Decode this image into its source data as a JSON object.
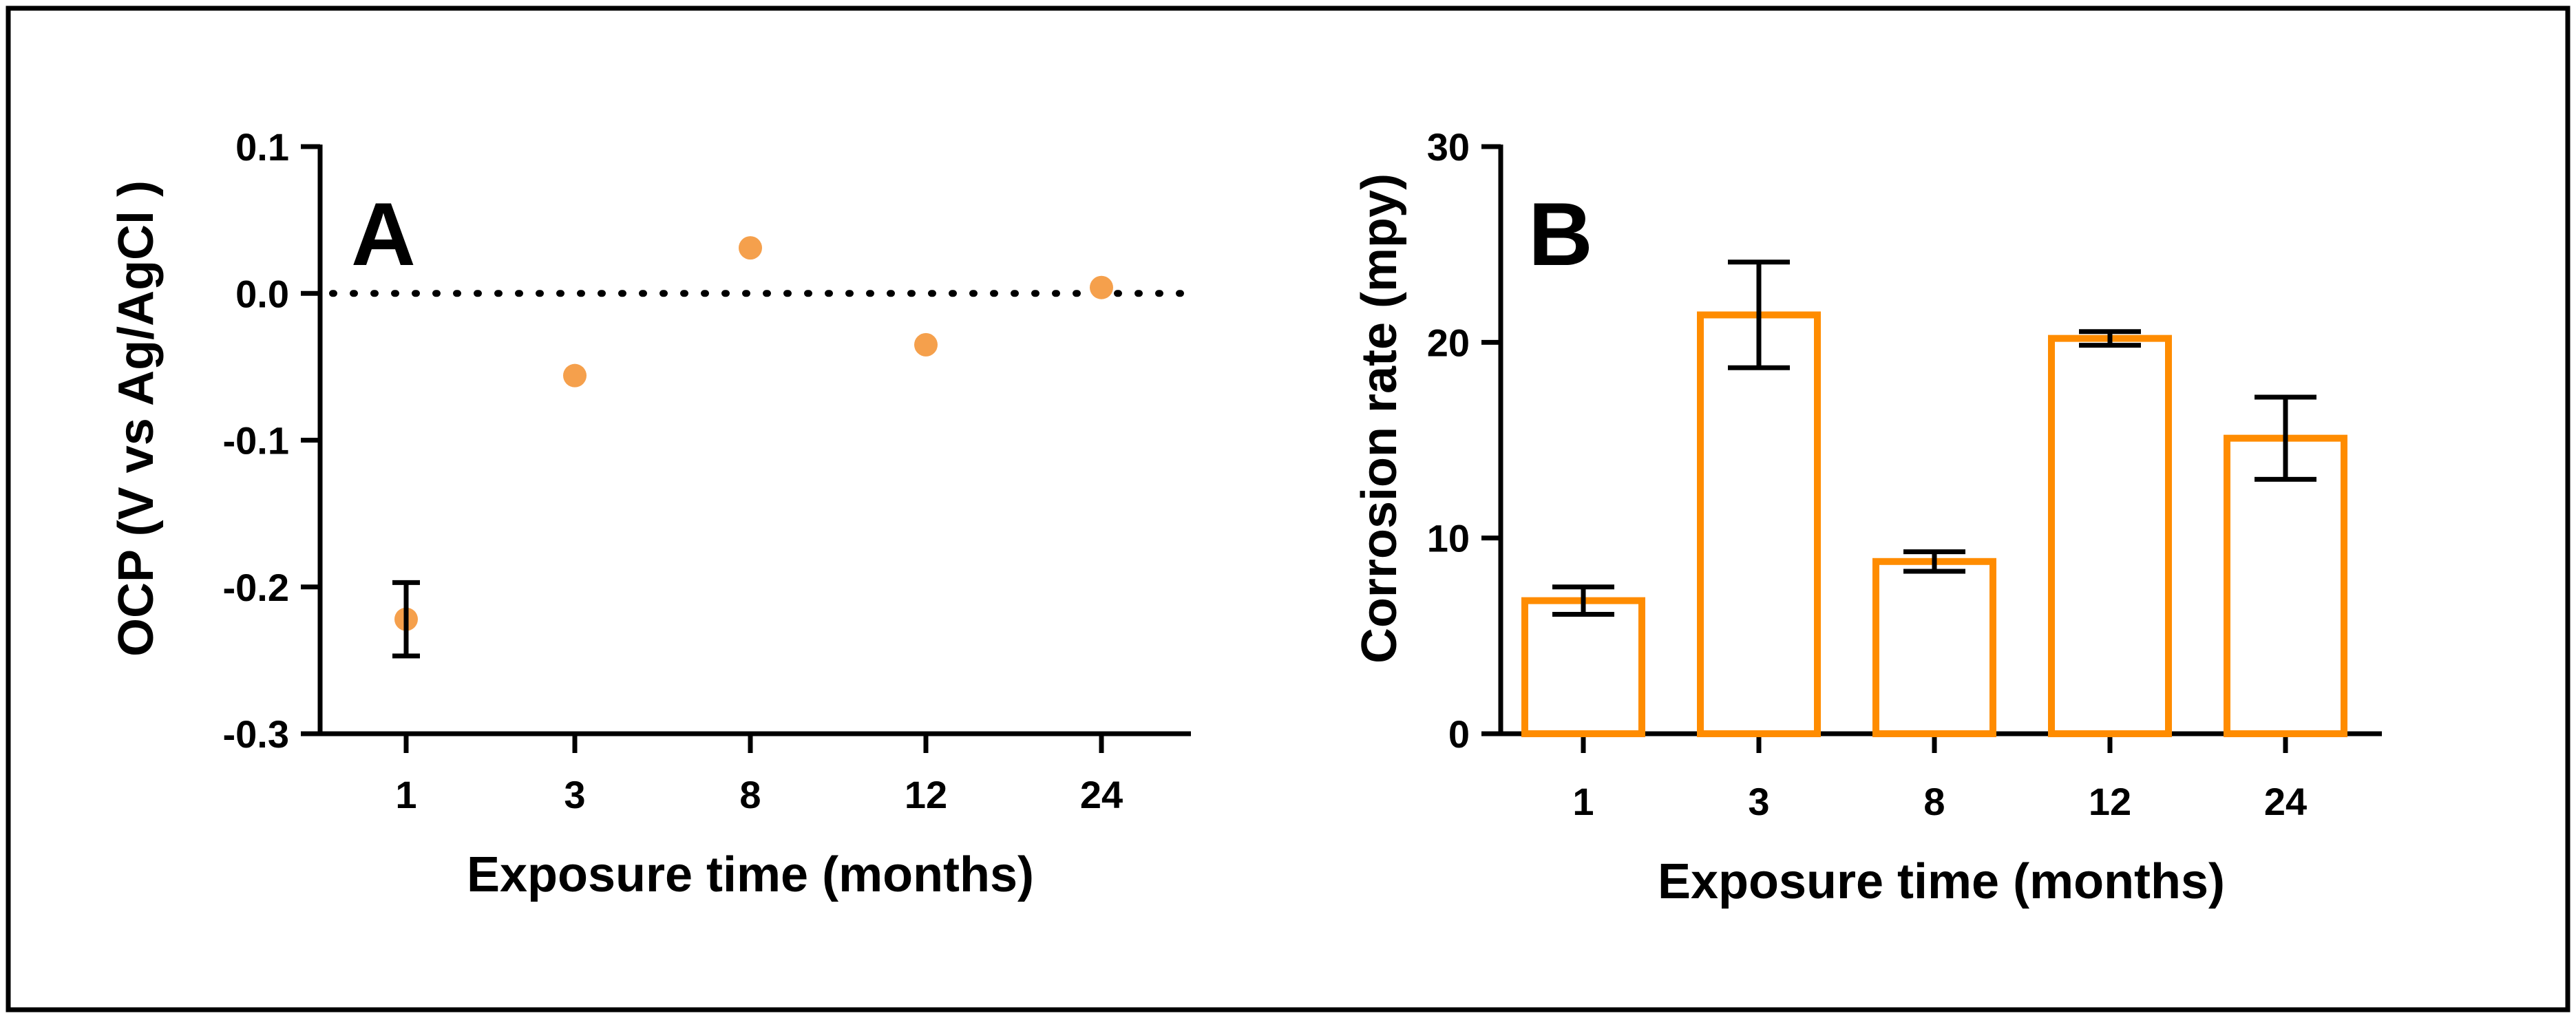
{
  "colors": {
    "marker": "#F5A04C",
    "bar_edge": "#FF8C00",
    "axis": "#000000",
    "frame": "#000000",
    "background": "#FFFFFF"
  },
  "chart_data": [
    {
      "panel": "A",
      "type": "scatter",
      "categories": [
        "1",
        "3",
        "8",
        "12",
        "24"
      ],
      "values": [
        -0.222,
        -0.056,
        0.031,
        -0.035,
        0.004
      ],
      "errors": [
        0.025,
        null,
        null,
        null,
        null
      ],
      "reference_line": {
        "y": 0.0,
        "style": "dotted"
      },
      "xlabel": "Exposure time (months)",
      "ylabel": "OCP (V vs Ag/AgCl )",
      "ylim": [
        -0.3,
        0.1
      ],
      "yticks": [
        0.1,
        0.0,
        -0.1,
        -0.2,
        -0.3
      ],
      "ytick_labels": [
        "0.1",
        "0.0",
        "-0.1",
        "-0.2",
        "-0.3"
      ],
      "grid": false
    },
    {
      "panel": "B",
      "type": "bar",
      "categories": [
        "1",
        "3",
        "8",
        "12",
        "24"
      ],
      "values": [
        6.8,
        21.4,
        8.8,
        20.2,
        15.1
      ],
      "errors": [
        0.7,
        2.7,
        0.5,
        0.35,
        2.1
      ],
      "xlabel": "Exposure time (months)",
      "ylabel": "Corrosion rate (mpy)",
      "ylim": [
        0,
        30
      ],
      "yticks": [
        0,
        10,
        20,
        30
      ],
      "ytick_labels": [
        "0",
        "10",
        "20",
        "30"
      ],
      "grid": false
    }
  ]
}
